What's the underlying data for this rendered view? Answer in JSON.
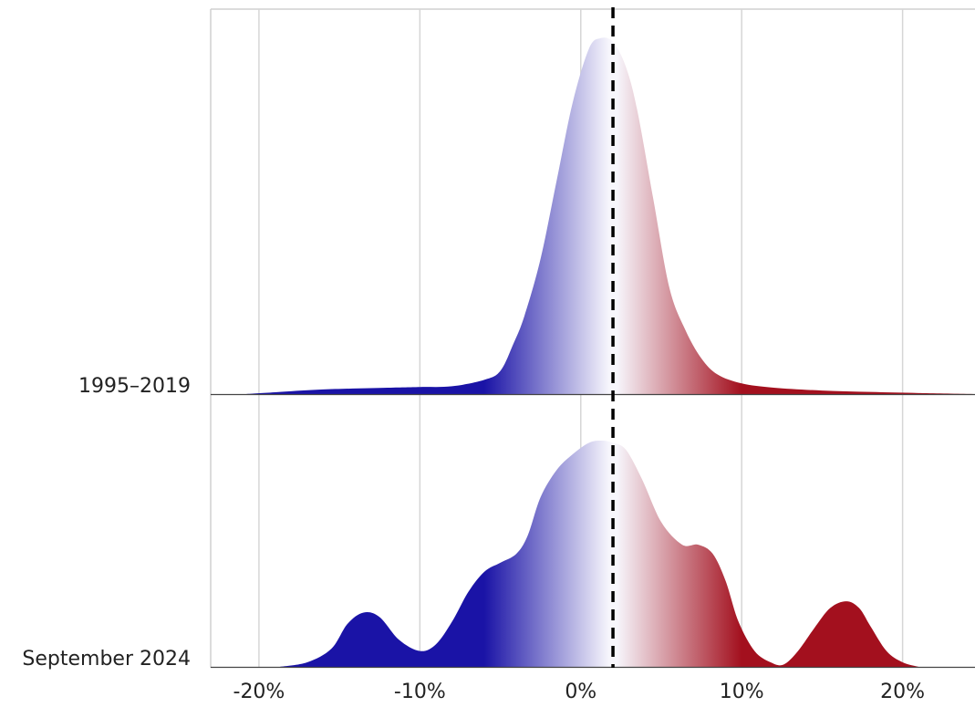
{
  "chart_data": {
    "type": "area",
    "subtype": "ridgeline-density",
    "x_unit": "%",
    "xlim": [
      -23,
      24.5
    ],
    "x_ticks": [
      -20,
      -10,
      0,
      10,
      20
    ],
    "x_tick_labels": [
      "-20%",
      "-10%",
      "0%",
      "10%",
      "20%"
    ],
    "grid": true,
    "reference_line": {
      "x": 2,
      "style": "dashed",
      "color": "#000000"
    },
    "gradient": {
      "negative_color": "#1a13a6",
      "center_color": "#f7f6fc",
      "positive_color": "#a3101e",
      "center": 2
    },
    "series": [
      {
        "name": "1995–2019",
        "points": [
          [
            -20.8,
            0
          ],
          [
            -19,
            0.005
          ],
          [
            -16,
            0.013
          ],
          [
            -12,
            0.018
          ],
          [
            -10,
            0.02
          ],
          [
            -8,
            0.022
          ],
          [
            -6,
            0.04
          ],
          [
            -5,
            0.065
          ],
          [
            -4.2,
            0.14
          ],
          [
            -3.5,
            0.22
          ],
          [
            -2.5,
            0.38
          ],
          [
            -1.5,
            0.6
          ],
          [
            -0.5,
            0.82
          ],
          [
            0.5,
            0.97
          ],
          [
            1.2,
            1.0
          ],
          [
            2.0,
            0.99
          ],
          [
            2.8,
            0.92
          ],
          [
            3.5,
            0.8
          ],
          [
            4.5,
            0.55
          ],
          [
            5.5,
            0.3
          ],
          [
            6.5,
            0.18
          ],
          [
            7.5,
            0.1
          ],
          [
            8.5,
            0.055
          ],
          [
            10,
            0.03
          ],
          [
            12,
            0.018
          ],
          [
            15,
            0.01
          ],
          [
            18,
            0.006
          ],
          [
            21,
            0.003
          ],
          [
            24.5,
            0
          ]
        ]
      },
      {
        "name": "September 2024",
        "points": [
          [
            -18.7,
            0
          ],
          [
            -17,
            0.02
          ],
          [
            -15.5,
            0.08
          ],
          [
            -14.5,
            0.19
          ],
          [
            -13.5,
            0.24
          ],
          [
            -12.5,
            0.22
          ],
          [
            -11.3,
            0.12
          ],
          [
            -10,
            0.07
          ],
          [
            -9,
            0.1
          ],
          [
            -8,
            0.2
          ],
          [
            -7,
            0.33
          ],
          [
            -6,
            0.42
          ],
          [
            -5,
            0.46
          ],
          [
            -4,
            0.5
          ],
          [
            -3.3,
            0.58
          ],
          [
            -2.5,
            0.75
          ],
          [
            -1.5,
            0.87
          ],
          [
            -0.5,
            0.94
          ],
          [
            0.5,
            0.99
          ],
          [
            1.3,
            1.0
          ],
          [
            2.0,
            0.99
          ],
          [
            2.8,
            0.96
          ],
          [
            3.8,
            0.83
          ],
          [
            5,
            0.64
          ],
          [
            6.3,
            0.54
          ],
          [
            7.3,
            0.54
          ],
          [
            8.2,
            0.5
          ],
          [
            9,
            0.38
          ],
          [
            9.8,
            0.2
          ],
          [
            10.8,
            0.07
          ],
          [
            11.8,
            0.02
          ],
          [
            12.6,
            0.01
          ],
          [
            13.5,
            0.07
          ],
          [
            14.5,
            0.17
          ],
          [
            15.5,
            0.26
          ],
          [
            16.5,
            0.29
          ],
          [
            17.3,
            0.26
          ],
          [
            18,
            0.18
          ],
          [
            19,
            0.07
          ],
          [
            20,
            0.02
          ],
          [
            21,
            0
          ]
        ]
      }
    ]
  }
}
